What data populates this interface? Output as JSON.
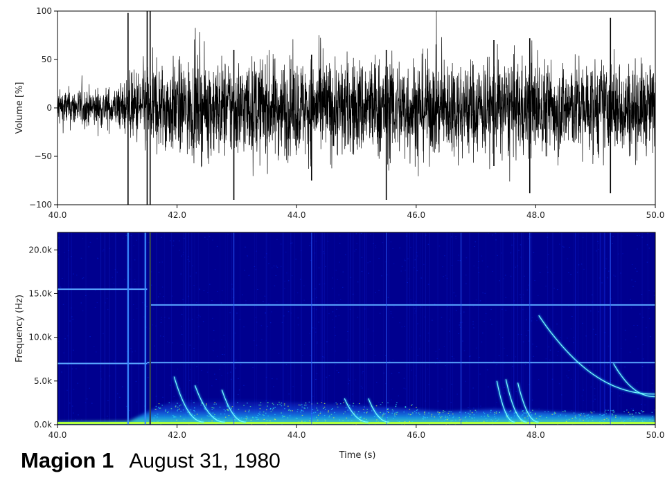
{
  "chart_data": [
    {
      "type": "line",
      "ylabel": "Volume [%]",
      "xlabel": "",
      "xlim": [
        40.0,
        50.0
      ],
      "ylim": [
        -100,
        100
      ],
      "xticks": [
        "40.0",
        "42.0",
        "44.0",
        "46.0",
        "48.0",
        "50.0"
      ],
      "yticks": [
        "100",
        "50",
        "0",
        "−50",
        "−100"
      ],
      "grid": false,
      "series": [
        {
          "color": "#000000",
          "envelope_x": [
            40.0,
            40.5,
            41.0,
            41.2,
            41.5,
            42.0,
            42.5,
            43.0,
            43.5,
            44.0,
            44.5,
            45.0,
            45.5,
            46.0,
            46.5,
            47.0,
            47.5,
            48.0,
            48.5,
            49.0,
            49.5,
            50.0
          ],
          "envelope_amplitude": [
            18,
            18,
            19,
            30,
            42,
            42,
            45,
            45,
            45,
            44,
            45,
            46,
            47,
            46,
            45,
            44,
            44,
            43,
            43,
            44,
            42,
            40
          ],
          "spikes": [
            {
              "x": 41.18,
              "y_max": 98,
              "y_min": -100
            },
            {
              "x": 41.5,
              "y_max": 100,
              "y_min": -100
            },
            {
              "x": 41.55,
              "y_max": 100,
              "y_min": -100
            },
            {
              "x": 42.95,
              "y_max": 60,
              "y_min": -95
            },
            {
              "x": 44.25,
              "y_max": 55,
              "y_min": -75
            },
            {
              "x": 45.5,
              "y_max": 60,
              "y_min": -95
            },
            {
              "x": 47.3,
              "y_max": 70,
              "y_min": -60
            },
            {
              "x": 47.9,
              "y_max": 72,
              "y_min": -88
            },
            {
              "x": 49.25,
              "y_max": 93,
              "y_min": -88
            }
          ]
        }
      ]
    },
    {
      "type": "heatmap",
      "xlabel": "Time (s)",
      "ylabel": "Frequency (Hz)",
      "xlim": [
        40.0,
        50.0
      ],
      "ylim": [
        0,
        22000
      ],
      "xticks": [
        "40.0",
        "42.0",
        "44.0",
        "46.0",
        "48.0",
        "50.0"
      ],
      "yticks": [
        "20.0k",
        "15.0k",
        "10.0k",
        "5.0k",
        "0.0k"
      ],
      "colormap": "jet",
      "grid": false,
      "tones": [
        {
          "freq": 15500,
          "x_start": 40.0,
          "x_end": 41.5
        },
        {
          "freq": 13700,
          "x_start": 41.55,
          "x_end": 50.0
        },
        {
          "freq": 7000,
          "x_start": 40.0,
          "x_end": 41.5
        },
        {
          "freq": 7100,
          "x_start": 41.5,
          "x_end": 50.0
        },
        {
          "freq": 200,
          "x_start": 40.0,
          "x_end": 50.0
        }
      ],
      "impulses": [
        41.18,
        41.47,
        41.55,
        42.95,
        44.25,
        45.5,
        46.75,
        47.9,
        49.25
      ],
      "whistlers": [
        {
          "x0": 48.05,
          "x1": 50.0,
          "f0": 12500,
          "f1": 3500
        },
        {
          "x0": 49.3,
          "x1": 50.0,
          "f0": 7000,
          "f1": 3200
        },
        {
          "x0": 41.95,
          "x1": 42.45,
          "f0": 5500,
          "f1": 300
        },
        {
          "x0": 42.3,
          "x1": 42.8,
          "f0": 4500,
          "f1": 300
        },
        {
          "x0": 42.75,
          "x1": 43.15,
          "f0": 4000,
          "f1": 300
        },
        {
          "x0": 44.8,
          "x1": 45.2,
          "f0": 3000,
          "f1": 300
        },
        {
          "x0": 45.2,
          "x1": 45.55,
          "f0": 3000,
          "f1": 300
        },
        {
          "x0": 47.35,
          "x1": 47.65,
          "f0": 5000,
          "f1": 300
        },
        {
          "x0": 47.5,
          "x1": 47.85,
          "f0": 5200,
          "f1": 300
        },
        {
          "x0": 47.7,
          "x1": 48.05,
          "f0": 4800,
          "f1": 300
        }
      ]
    }
  ],
  "caption": {
    "bold": "Magion 1",
    "date": "August  31, 1980"
  }
}
